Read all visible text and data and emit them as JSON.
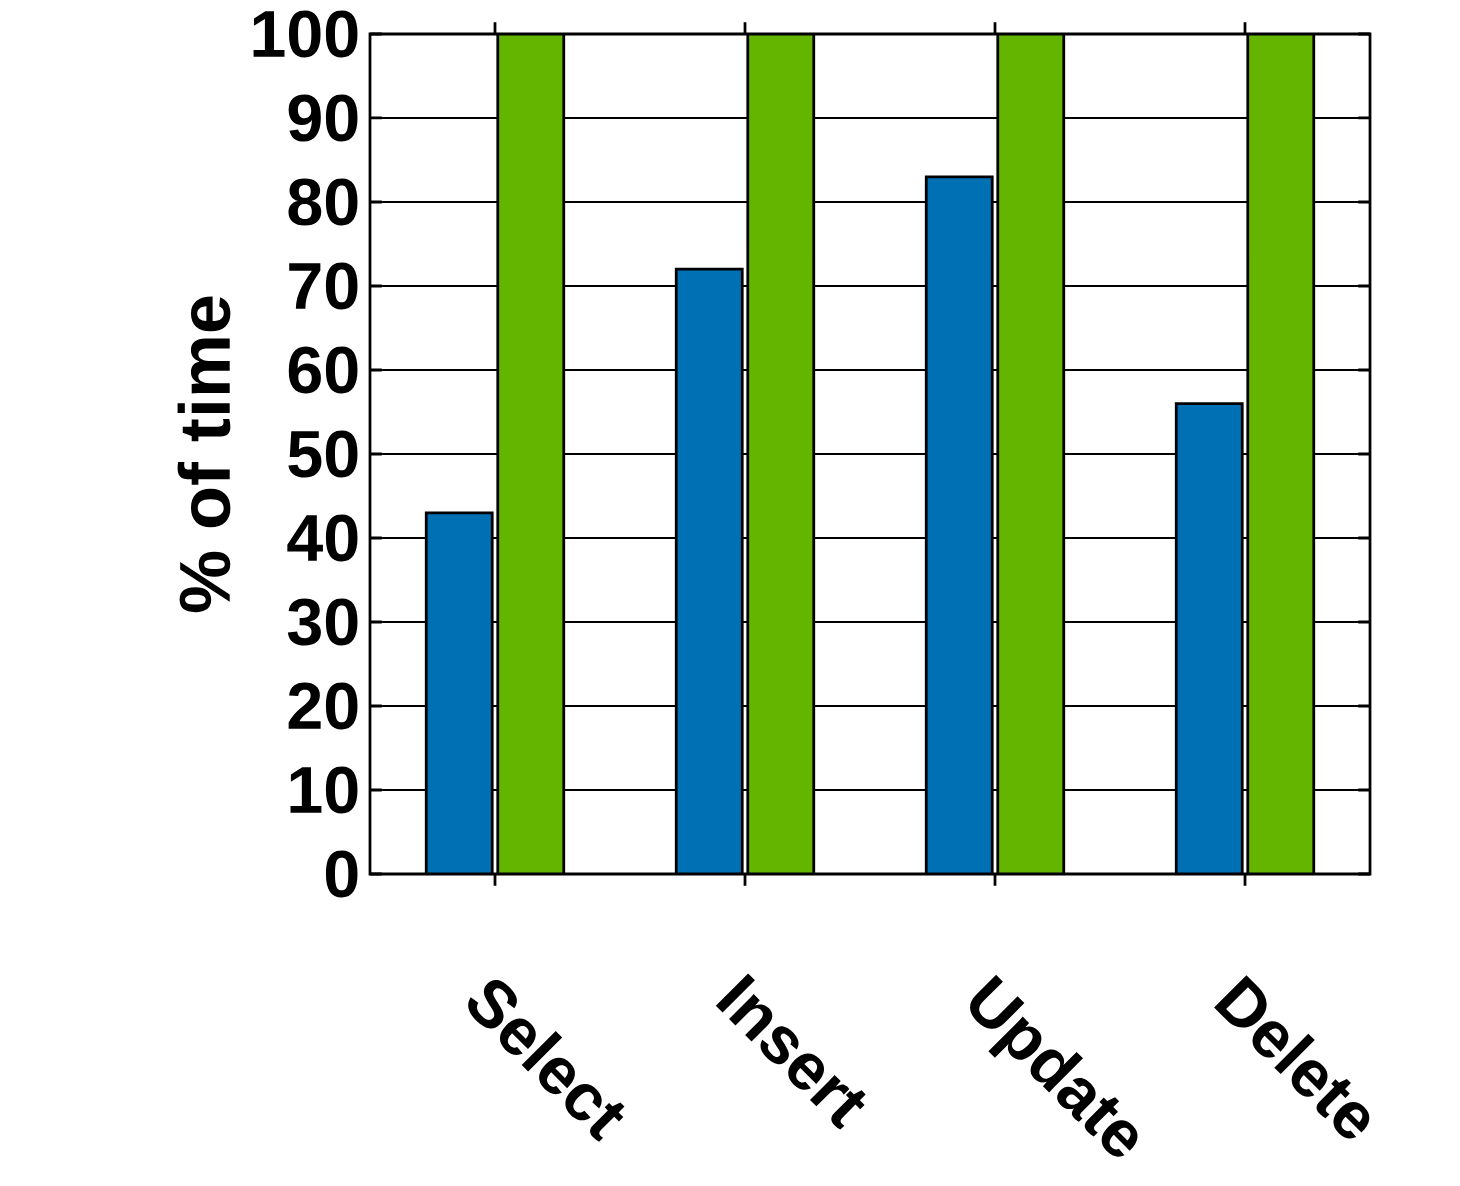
{
  "chart_data": {
    "type": "bar",
    "ylabel": "% of time",
    "categories": [
      "Select",
      "Insert",
      "Update",
      "Delete"
    ],
    "series": [
      {
        "color": "#0070b4",
        "values": [
          43,
          72,
          83,
          56
        ]
      },
      {
        "color": "#63b500",
        "values": [
          100,
          100,
          100,
          100
        ]
      }
    ],
    "ylim": [
      0,
      100
    ],
    "yticks": [
      0,
      10,
      20,
      30,
      40,
      50,
      60,
      70,
      80,
      90,
      100
    ],
    "grid": "y"
  }
}
